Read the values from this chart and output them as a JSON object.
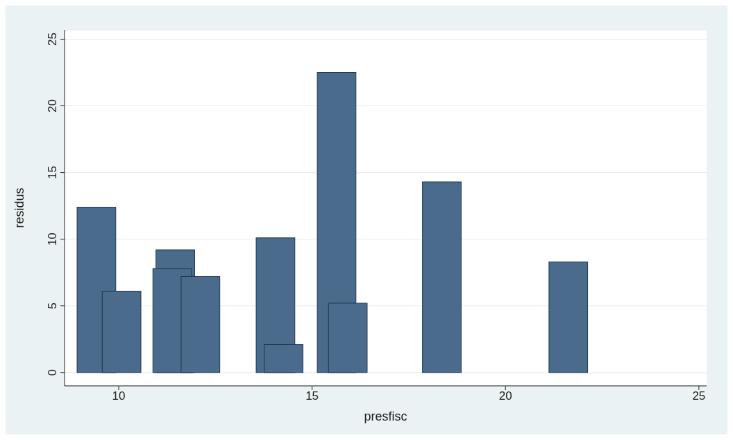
{
  "chart_data": {
    "type": "bar",
    "xlabel": "presfisc",
    "ylabel": "residus",
    "x": [
      9.42,
      10.07,
      11.38,
      11.46,
      12.11,
      14.05,
      14.26,
      15.63,
      15.92,
      18.35,
      21.62
    ],
    "values": [
      12.4,
      6.1,
      7.8,
      9.2,
      7.2,
      10.1,
      2.1,
      22.5,
      5.2,
      14.3,
      8.3
    ],
    "color": "#4a6b8c",
    "xlim": [
      8.6,
      25.2
    ],
    "xticks": [
      10,
      15,
      20,
      25
    ],
    "ylim": [
      -1,
      25.7
    ],
    "yticks": [
      0,
      5,
      10,
      15,
      20,
      25
    ],
    "grid": "y"
  }
}
